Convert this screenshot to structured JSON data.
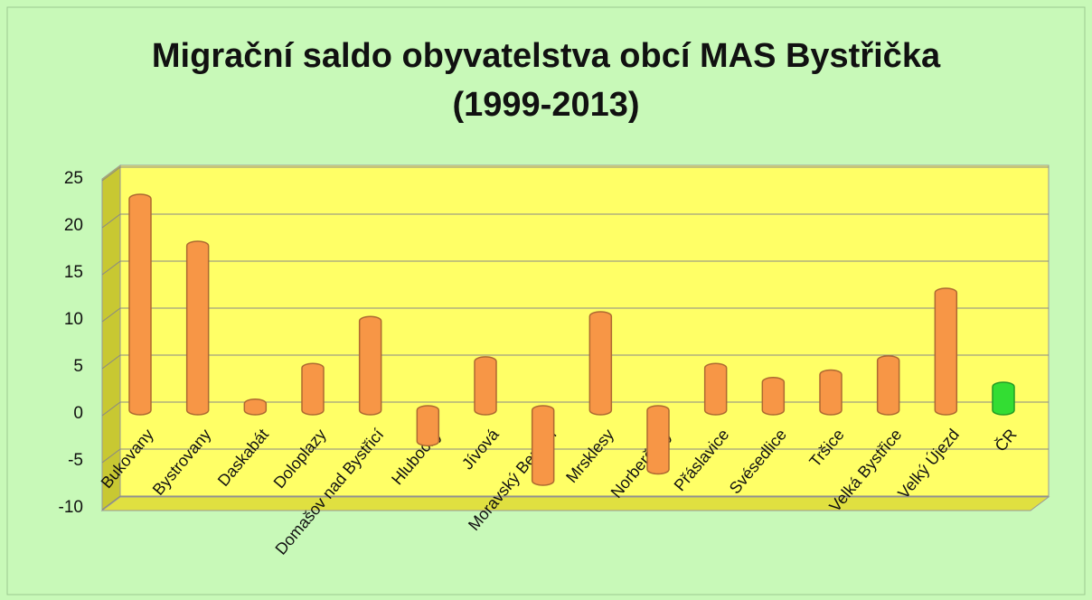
{
  "chart_data": {
    "type": "bar",
    "title": [
      "Migrační saldo obyvatelstva obcí MAS Bystřička",
      "(1999-2013)"
    ],
    "categories": [
      "Bukovany",
      "Bystrovany",
      "Daskabát",
      "Doloplazy",
      "Domašov nad Bystřicí",
      "Hlubočky",
      "Jívová",
      "Moravský Beroun",
      "Mrsklesy",
      "Norberčany",
      "Přáslavice",
      "Svésedlice",
      "Tršice",
      "Velká Bystřice",
      "Velký Újezd",
      "ČR"
    ],
    "values": [
      22.5,
      17.5,
      0.7,
      4.5,
      9.5,
      -3.3,
      5.2,
      -7.5,
      10,
      -6.3,
      4.5,
      3,
      3.8,
      5.3,
      12.5,
      2.5
    ],
    "colors": [
      "#f79646",
      "#f79646",
      "#f79646",
      "#f79646",
      "#f79646",
      "#f79646",
      "#f79646",
      "#f79646",
      "#f79646",
      "#f79646",
      "#f79646",
      "#f79646",
      "#f79646",
      "#f79646",
      "#f79646",
      "#33dd33"
    ],
    "ylim": [
      -10,
      25
    ],
    "yticks": [
      -10,
      -5,
      0,
      5,
      10,
      15,
      20,
      25
    ],
    "grid": true
  }
}
